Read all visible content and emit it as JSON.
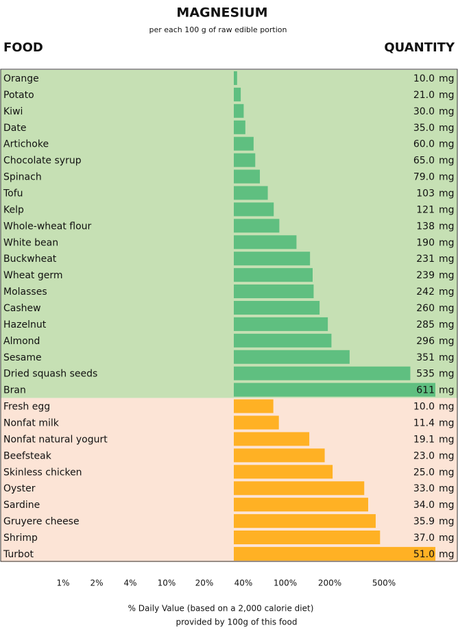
{
  "title": "MAGNESIUM",
  "subtitle": "per each 100 g of raw edible portion",
  "food_header": "FOOD",
  "quantity_header": "QUANTITY",
  "unit": "mg",
  "groups": [
    {
      "background": "#c6e0b4",
      "color": "#5fbf80",
      "items": [
        "Orange",
        "Potato",
        "Kiwi",
        "Date",
        "Artichoke",
        "Chocolate syrup",
        "Spinach",
        "Tofu",
        "Kelp",
        "Whole-wheat flour",
        "White bean",
        "Buckwheat",
        "Wheat germ",
        "Molasses",
        "Cashew",
        "Hazelnut",
        "Almond",
        "Sesame",
        "Dried squash seeds",
        "Bran"
      ],
      "values": [
        10.0,
        21.0,
        30.0,
        35.0,
        60.0,
        65.0,
        79.0,
        103,
        121,
        138,
        190,
        231,
        239,
        242,
        260,
        285,
        296,
        351,
        535,
        611
      ],
      "value_labels": [
        "10.0",
        "21.0",
        "30.0",
        "35.0",
        "60.0",
        "65.0",
        "79.0",
        "103",
        "121",
        "138",
        "190",
        "231",
        "239",
        "242",
        "260",
        "285",
        "296",
        "351",
        "535",
        "611"
      ]
    },
    {
      "background": "#fce4d6",
      "color": "#ffb124",
      "items": [
        "Fresh egg",
        "Nonfat milk",
        "Nonfat natural yogurt",
        "Beefsteak",
        "Skinless chicken",
        "Oyster",
        "Sardine",
        "Gruyere cheese",
        "Shrimp",
        "Turbot"
      ],
      "values": [
        10.0,
        11.4,
        19.1,
        23.0,
        25.0,
        33.0,
        34.0,
        35.9,
        37.0,
        51.0
      ],
      "value_labels": [
        "10.0",
        "11.4",
        "19.1",
        "23.0",
        "25.0",
        "33.0",
        "34.0",
        "35.9",
        "37.0",
        "51.0"
      ]
    }
  ],
  "daily_value_ticks": [
    "1%",
    "2%",
    "4%",
    "10%",
    "20%",
    "40%",
    "100%",
    "200%",
    "500%"
  ],
  "footer": [
    "% Daily Value (based on a 2,000 calorie diet)",
    "provided by 100g of this food"
  ]
}
